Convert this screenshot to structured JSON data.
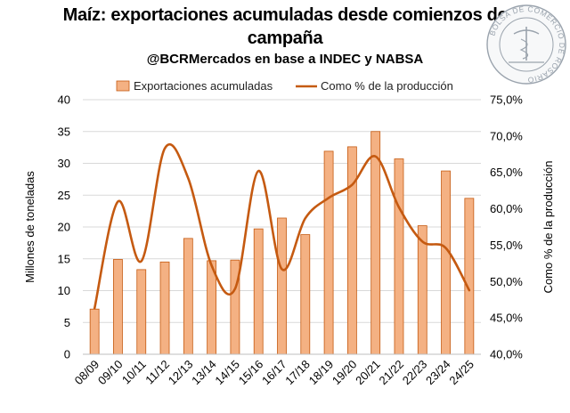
{
  "header": {
    "title_line1": "Maíz: exportaciones acumuladas desde comienzos de",
    "title_line2": "campaña",
    "subtitle": "@BCRMercados en base a INDEC y NABSA"
  },
  "seal": {
    "text": "BOLSA DE COMERCIO DE ROSARIO",
    "color": "#9aa3ad"
  },
  "colors": {
    "bar_fill": "#f4b183",
    "bar_stroke": "#c55a11",
    "line": "#c55a11",
    "grid": "#d9d9d9"
  },
  "chart_data": {
    "type": "bar+line",
    "categories": [
      "08/09",
      "09/10",
      "10/11",
      "11/12",
      "12/13",
      "13/14",
      "14/15",
      "15/16",
      "16/17",
      "17/18",
      "18/19",
      "19/20",
      "20/21",
      "21/22",
      "22/23",
      "23/24",
      "24/25"
    ],
    "series": [
      {
        "name": "Exportaciones acumuladas",
        "type": "bar",
        "axis": "left",
        "values": [
          7.1,
          14.9,
          13.3,
          14.5,
          18.2,
          14.7,
          14.8,
          19.7,
          21.4,
          18.8,
          31.9,
          32.6,
          35.0,
          30.7,
          20.2,
          28.8,
          24.5
        ]
      },
      {
        "name": "Como % de la producción",
        "type": "line",
        "axis": "right",
        "values": [
          0.463,
          0.61,
          0.528,
          0.683,
          0.642,
          0.522,
          0.49,
          0.652,
          0.517,
          0.587,
          0.615,
          0.633,
          0.672,
          0.602,
          0.555,
          0.546,
          0.488
        ]
      }
    ],
    "ylabel": "Millones de toneladas",
    "ylabel_right": "Como % de la producción",
    "ylim": [
      0,
      40
    ],
    "yticks": [
      "0",
      "5",
      "10",
      "15",
      "20",
      "25",
      "30",
      "35",
      "40"
    ],
    "ylim_right": [
      0.4,
      0.75
    ],
    "yticks_right": [
      "40,0%",
      "45,0%",
      "50,0%",
      "55,0%",
      "60,0%",
      "65,0%",
      "70,0%",
      "75,0%"
    ],
    "grid": true,
    "legend_position": "top"
  }
}
